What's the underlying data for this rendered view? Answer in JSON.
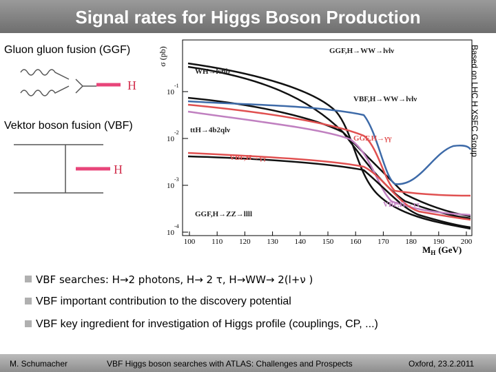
{
  "title": "Signal rates for Higgs Boson Production",
  "sections": [
    "Gluon gluon fusion (GGF)",
    "Vektor boson fusion (VBF)"
  ],
  "side_note": "Based on LHC H XSEC Group",
  "plot": {
    "y_label": "σ (pb)",
    "x_label": "M",
    "x_label_sub": "H",
    "x_label_unit": "(GeV)",
    "xticks": [
      "100",
      "110",
      "120",
      "130",
      "140",
      "150",
      "160",
      "170",
      "180",
      "190",
      "200"
    ],
    "yticks": [
      {
        "base": "10",
        "exp": "-1"
      },
      {
        "base": "10",
        "exp": "-2"
      },
      {
        "base": "10",
        "exp": "-3"
      },
      {
        "base": "10",
        "exp": "-4"
      }
    ],
    "curve_labels": [
      "GGF,H→WW→lνlν",
      "WH→lνbb",
      "VBF,H→WW→lνlν",
      "ttH→4b2qlν",
      "GGF,H→γγ",
      "VBF,H→γγ",
      "VBF,H→ττ",
      "GGF,H→ZZ→llll"
    ]
  },
  "diagram_labels": [
    "H",
    "H"
  ],
  "bullets": [
    "VBF searches: H→2 photons, H→ 2 τ, H→WW→ 2(l+ν )",
    "VBF important contribution to the discovery potential",
    "VBF key ingredient for investigation of Higgs profile (couplings, CP, ...)"
  ],
  "footer": {
    "author": "M. Schumacher",
    "talk": "VBF Higgs boson searches with ATLAS: Challenges and Prospects",
    "place_date": "Oxford, 23.2.2011"
  }
}
